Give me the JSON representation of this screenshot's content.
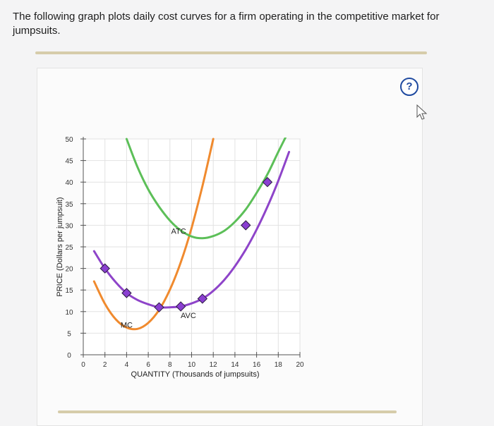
{
  "question": {
    "text": "The following graph plots daily cost curves for a firm operating in the competitive market for jumpsuits."
  },
  "help_button": {
    "label": "?",
    "icon": "help-circle-icon"
  },
  "colors": {
    "mc": "#f08a2e",
    "atc": "#5cbf58",
    "avc": "#8e44c9",
    "marker": "#8a3fd1"
  },
  "chart_data": {
    "type": "line",
    "xlabel": "QUANTITY (Thousands of jumpsuits)",
    "ylabel": "PRICE (Dollars per jumpsuit)",
    "xlim": [
      0,
      20
    ],
    "ylim": [
      0,
      50
    ],
    "xticks": [
      0,
      2,
      4,
      6,
      8,
      10,
      12,
      14,
      16,
      18,
      20
    ],
    "yticks": [
      0,
      5,
      10,
      15,
      20,
      25,
      30,
      35,
      40,
      45,
      50
    ],
    "grid": true,
    "series": [
      {
        "name": "MC",
        "x": [
          1,
          2,
          3,
          4,
          5,
          6,
          7,
          8,
          9,
          10,
          11,
          12
        ],
        "y": [
          17.0,
          11.8,
          8.2,
          6.3,
          6.0,
          7.4,
          10.4,
          15.1,
          21.4,
          29.4,
          39.1,
          50.0
        ]
      },
      {
        "name": "ATC",
        "x": [
          4,
          5,
          6,
          7,
          8,
          9,
          10,
          11,
          12,
          13,
          14,
          15,
          16,
          17,
          18,
          19
        ],
        "y": [
          50.0,
          43.5,
          38.3,
          34.3,
          31.1,
          28.8,
          27.4,
          27.0,
          27.5,
          28.7,
          30.8,
          33.7,
          37.5,
          41.8,
          47.0,
          52.0
        ]
      },
      {
        "name": "AVC",
        "x": [
          1,
          2,
          3,
          4,
          5,
          6,
          7,
          8,
          9,
          10,
          11,
          12,
          13,
          14,
          15,
          16,
          17,
          18,
          19
        ],
        "y": [
          24.0,
          20.0,
          16.8,
          14.3,
          12.7,
          11.7,
          11.0,
          11.0,
          11.2,
          11.9,
          13.0,
          14.8,
          17.3,
          20.5,
          24.4,
          29.0,
          34.3,
          40.3,
          47.0
        ]
      }
    ],
    "points": {
      "x": [
        2,
        4,
        7,
        9,
        11,
        15,
        17
      ],
      "y": [
        20,
        14.3,
        11,
        11.2,
        13,
        30,
        40
      ]
    },
    "annotations": [
      {
        "text": "MC",
        "x": 4.0,
        "y": 6.3
      },
      {
        "text": "ATC",
        "x": 8.8,
        "y": 28.0
      },
      {
        "text": "AVC",
        "x": 9.7,
        "y": 8.5
      }
    ]
  }
}
